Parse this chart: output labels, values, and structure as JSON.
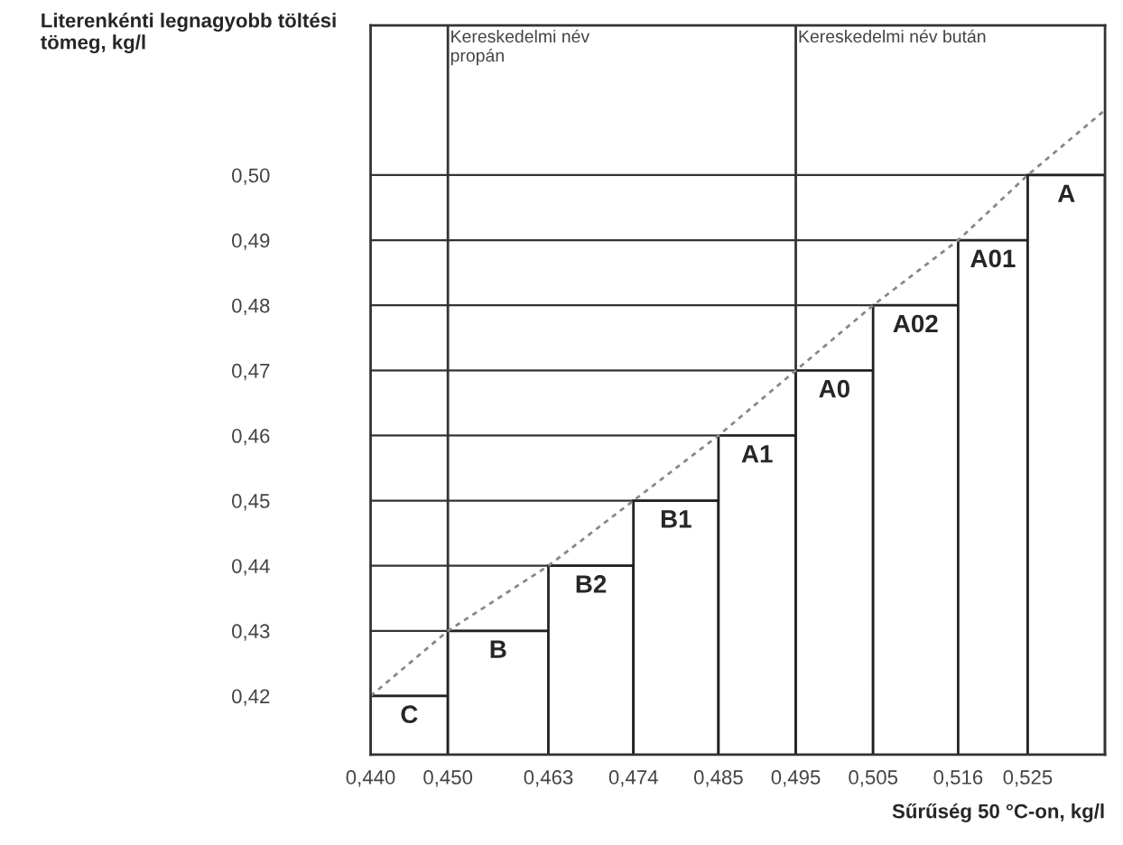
{
  "chart_data": {
    "type": "bar",
    "ylabel": "Literenkénti legnagyobb töltési tömeg, kg/l",
    "xlabel": "Sűrűség 50 °C-on, kg/l",
    "x": [
      0.445,
      0.4565,
      0.4685,
      0.4795,
      0.49,
      0.5,
      0.5105,
      0.5205,
      0.53
    ],
    "series": [
      {
        "color": "#ffffff",
        "values": [
          0.42,
          0.43,
          0.44,
          0.45,
          0.46,
          0.47,
          0.48,
          0.49,
          0.5
        ],
        "value_labels": [
          "C",
          "B",
          "B2",
          "B1",
          "A1",
          "A0",
          "A02",
          "A01",
          "A"
        ]
      },
      {
        "type": "line",
        "line_style": "dashed",
        "color": "#888888",
        "x": [
          0.44,
          0.45,
          0.463,
          0.474,
          0.485,
          0.495,
          0.505,
          0.516,
          0.525,
          0.535
        ],
        "values": [
          0.42,
          0.43,
          0.44,
          0.45,
          0.46,
          0.47,
          0.48,
          0.49,
          0.5,
          0.51
        ]
      }
    ],
    "xlim": [
      0.44,
      0.535
    ],
    "ylim": [
      0.411,
      0.523
    ],
    "xticks": [
      {
        "value": 0.44,
        "label": "0,440"
      },
      {
        "value": 0.45,
        "label": "0,450"
      },
      {
        "value": 0.463,
        "label": "0,463"
      },
      {
        "value": 0.474,
        "label": "0,474"
      },
      {
        "value": 0.485,
        "label": "0,485"
      },
      {
        "value": 0.495,
        "label": "0,495"
      },
      {
        "value": 0.505,
        "label": "0,505"
      },
      {
        "value": 0.516,
        "label": "0,516"
      },
      {
        "value": 0.525,
        "label": "0,525"
      }
    ],
    "yticks": [
      {
        "value": 0.42,
        "label": "0,42"
      },
      {
        "value": 0.43,
        "label": "0,43"
      },
      {
        "value": 0.44,
        "label": "0,44"
      },
      {
        "value": 0.45,
        "label": "0,45"
      },
      {
        "value": 0.46,
        "label": "0,46"
      },
      {
        "value": 0.47,
        "label": "0,47"
      },
      {
        "value": 0.48,
        "label": "0,48"
      },
      {
        "value": 0.49,
        "label": "0,49"
      },
      {
        "value": 0.5,
        "label": "0,50"
      }
    ],
    "grid": "y",
    "ref_lines": [
      {
        "axis": "x",
        "value": 0.45,
        "label": "Kereskedelmi név\npropán",
        "color": "#333333"
      },
      {
        "axis": "x",
        "value": 0.495,
        "label": "Kereskedelmi név bután",
        "color": "#333333"
      }
    ]
  }
}
